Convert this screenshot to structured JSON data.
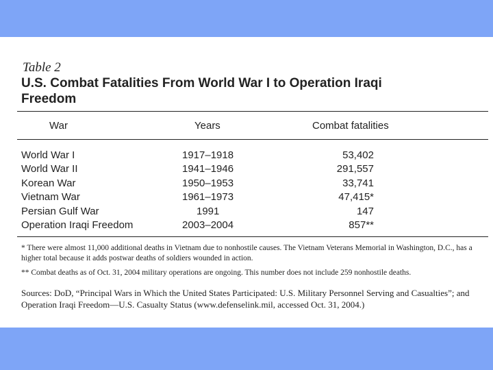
{
  "colors": {
    "band": "#7ea5f7",
    "text": "#222222"
  },
  "table": {
    "label": "Table 2",
    "title": "U.S. Combat Fatalities From World War I to Operation Iraqi Freedom",
    "headers": {
      "war": "War",
      "years": "Years",
      "fatalities": "Combat fatalities"
    },
    "rows": [
      {
        "war": "World War I",
        "years": "1917–1918",
        "fatalities": "53,402"
      },
      {
        "war": "World War II",
        "years": "1941–1946",
        "fatalities": "291,557"
      },
      {
        "war": "Korean War",
        "years": "1950–1953",
        "fatalities": "33,741"
      },
      {
        "war": "Vietnam War",
        "years": "1961–1973",
        "fatalities": "47,415*"
      },
      {
        "war": "Persian Gulf War",
        "years": "1991",
        "fatalities": "147"
      },
      {
        "war": "Operation Iraqi Freedom",
        "years": "2003–2004",
        "fatalities": "857**"
      }
    ],
    "footnote_1": "* There were almost 11,000 additional deaths in Vietnam due to nonhostile causes. The Vietnam Veterans Memorial in Washington, D.C., has a higher total because it adds postwar deaths of soldiers wounded in action.",
    "footnote_2": "** Combat deaths as of Oct. 31, 2004 military operations are ongoing. This number does not include 259 nonhostile deaths.",
    "sources": "Sources: DoD, “Principal Wars in Which the United States Participated: U.S. Military Personnel Serving and Casualties”; and Operation Iraqi Freedom—U.S. Casualty Status (www.defenselink.mil, accessed Oct. 31, 2004.)"
  }
}
